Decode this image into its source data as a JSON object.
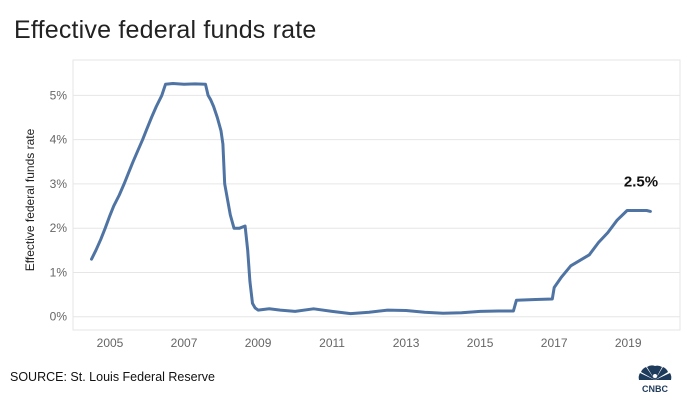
{
  "title": "Effective federal funds rate",
  "source": "SOURCE: St. Louis Federal Reserve",
  "logo": {
    "name": "cnbc-peacock-logo",
    "text": "CNBC"
  },
  "colors": {
    "line": "#4f74a3",
    "grid": "#e6e6e6",
    "tick": "#666666",
    "annotation": "#111111"
  },
  "chart_data": {
    "type": "line",
    "title": "Effective federal funds rate",
    "xlabel": "",
    "ylabel": "Effective federal funds rate",
    "xlim": [
      2004.0,
      2020.4
    ],
    "ylim": [
      -0.3,
      5.8
    ],
    "x_ticks": [
      2005,
      2007,
      2009,
      2011,
      2013,
      2015,
      2017,
      2019
    ],
    "x_tick_labels": [
      "2005",
      "2007",
      "2009",
      "2011",
      "2013",
      "2015",
      "2017",
      "2019"
    ],
    "y_ticks": [
      0,
      1,
      2,
      3,
      4,
      5
    ],
    "y_tick_labels": [
      "0%",
      "1%",
      "2%",
      "3%",
      "4%",
      "5%"
    ],
    "grid": true,
    "legend": "none",
    "annotations": [
      {
        "text": "2.5%",
        "x": 2019.4,
        "y": 2.4
      }
    ],
    "series": [
      {
        "points": [
          [
            2004.5,
            1.3
          ],
          [
            2004.62,
            1.5
          ],
          [
            2004.75,
            1.75
          ],
          [
            2004.87,
            2.0
          ],
          [
            2004.98,
            2.25
          ],
          [
            2005.1,
            2.5
          ],
          [
            2005.25,
            2.75
          ],
          [
            2005.38,
            3.0
          ],
          [
            2005.5,
            3.25
          ],
          [
            2005.62,
            3.5
          ],
          [
            2005.75,
            3.75
          ],
          [
            2005.88,
            4.0
          ],
          [
            2006.0,
            4.25
          ],
          [
            2006.12,
            4.5
          ],
          [
            2006.25,
            4.75
          ],
          [
            2006.4,
            5.0
          ],
          [
            2006.5,
            5.25
          ],
          [
            2006.7,
            5.27
          ],
          [
            2007.0,
            5.25
          ],
          [
            2007.3,
            5.26
          ],
          [
            2007.58,
            5.25
          ],
          [
            2007.65,
            5.0
          ],
          [
            2007.72,
            4.9
          ],
          [
            2007.8,
            4.75
          ],
          [
            2007.9,
            4.5
          ],
          [
            2008.0,
            4.2
          ],
          [
            2008.05,
            3.9
          ],
          [
            2008.1,
            3.0
          ],
          [
            2008.25,
            2.3
          ],
          [
            2008.35,
            2.0
          ],
          [
            2008.5,
            2.0
          ],
          [
            2008.65,
            2.05
          ],
          [
            2008.72,
            1.5
          ],
          [
            2008.78,
            0.8
          ],
          [
            2008.85,
            0.3
          ],
          [
            2008.92,
            0.2
          ],
          [
            2009.0,
            0.15
          ],
          [
            2009.3,
            0.18
          ],
          [
            2009.6,
            0.15
          ],
          [
            2010.0,
            0.12
          ],
          [
            2010.5,
            0.18
          ],
          [
            2011.0,
            0.12
          ],
          [
            2011.5,
            0.07
          ],
          [
            2012.0,
            0.1
          ],
          [
            2012.5,
            0.15
          ],
          [
            2013.0,
            0.14
          ],
          [
            2013.5,
            0.1
          ],
          [
            2014.0,
            0.08
          ],
          [
            2014.5,
            0.09
          ],
          [
            2015.0,
            0.12
          ],
          [
            2015.5,
            0.13
          ],
          [
            2015.9,
            0.13
          ],
          [
            2015.98,
            0.37
          ],
          [
            2016.5,
            0.39
          ],
          [
            2016.95,
            0.4
          ],
          [
            2017.0,
            0.66
          ],
          [
            2017.2,
            0.9
          ],
          [
            2017.45,
            1.15
          ],
          [
            2017.95,
            1.4
          ],
          [
            2018.2,
            1.68
          ],
          [
            2018.45,
            1.9
          ],
          [
            2018.7,
            2.18
          ],
          [
            2018.97,
            2.4
          ],
          [
            2019.5,
            2.4
          ],
          [
            2019.6,
            2.38
          ]
        ]
      }
    ]
  }
}
